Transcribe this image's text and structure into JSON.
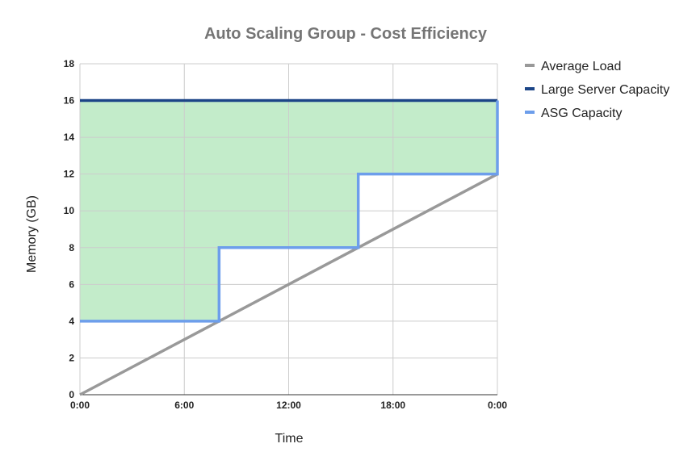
{
  "chart_data": {
    "type": "line",
    "title": "Auto Scaling Group - Cost Efficiency",
    "xlabel": "Time",
    "ylabel": "Memory (GB)",
    "x_ticks": [
      "0:00",
      "6:00",
      "12:00",
      "18:00",
      "0:00"
    ],
    "x_range_hours": [
      0,
      24
    ],
    "ylim": [
      0,
      18
    ],
    "y_ticks": [
      0,
      2,
      4,
      6,
      8,
      10,
      12,
      14,
      16,
      18
    ],
    "grid": true,
    "legend_position": "right",
    "series": [
      {
        "name": "Average Load",
        "color": "#999999",
        "x_hours": [
          0,
          24
        ],
        "values": [
          0,
          12
        ]
      },
      {
        "name": "Large Server Capacity",
        "color": "#1c4587",
        "x_hours": [
          0,
          24
        ],
        "values": [
          16,
          16
        ]
      },
      {
        "name": "ASG Capacity",
        "color": "#6d9eeb",
        "x_hours": [
          0,
          8,
          8,
          16,
          16,
          24,
          24
        ],
        "values": [
          4,
          4,
          8,
          8,
          12,
          12,
          16
        ]
      }
    ],
    "shaded_region": {
      "between": [
        "Large Server Capacity",
        "ASG Capacity"
      ],
      "color": "#c3ecca"
    }
  }
}
